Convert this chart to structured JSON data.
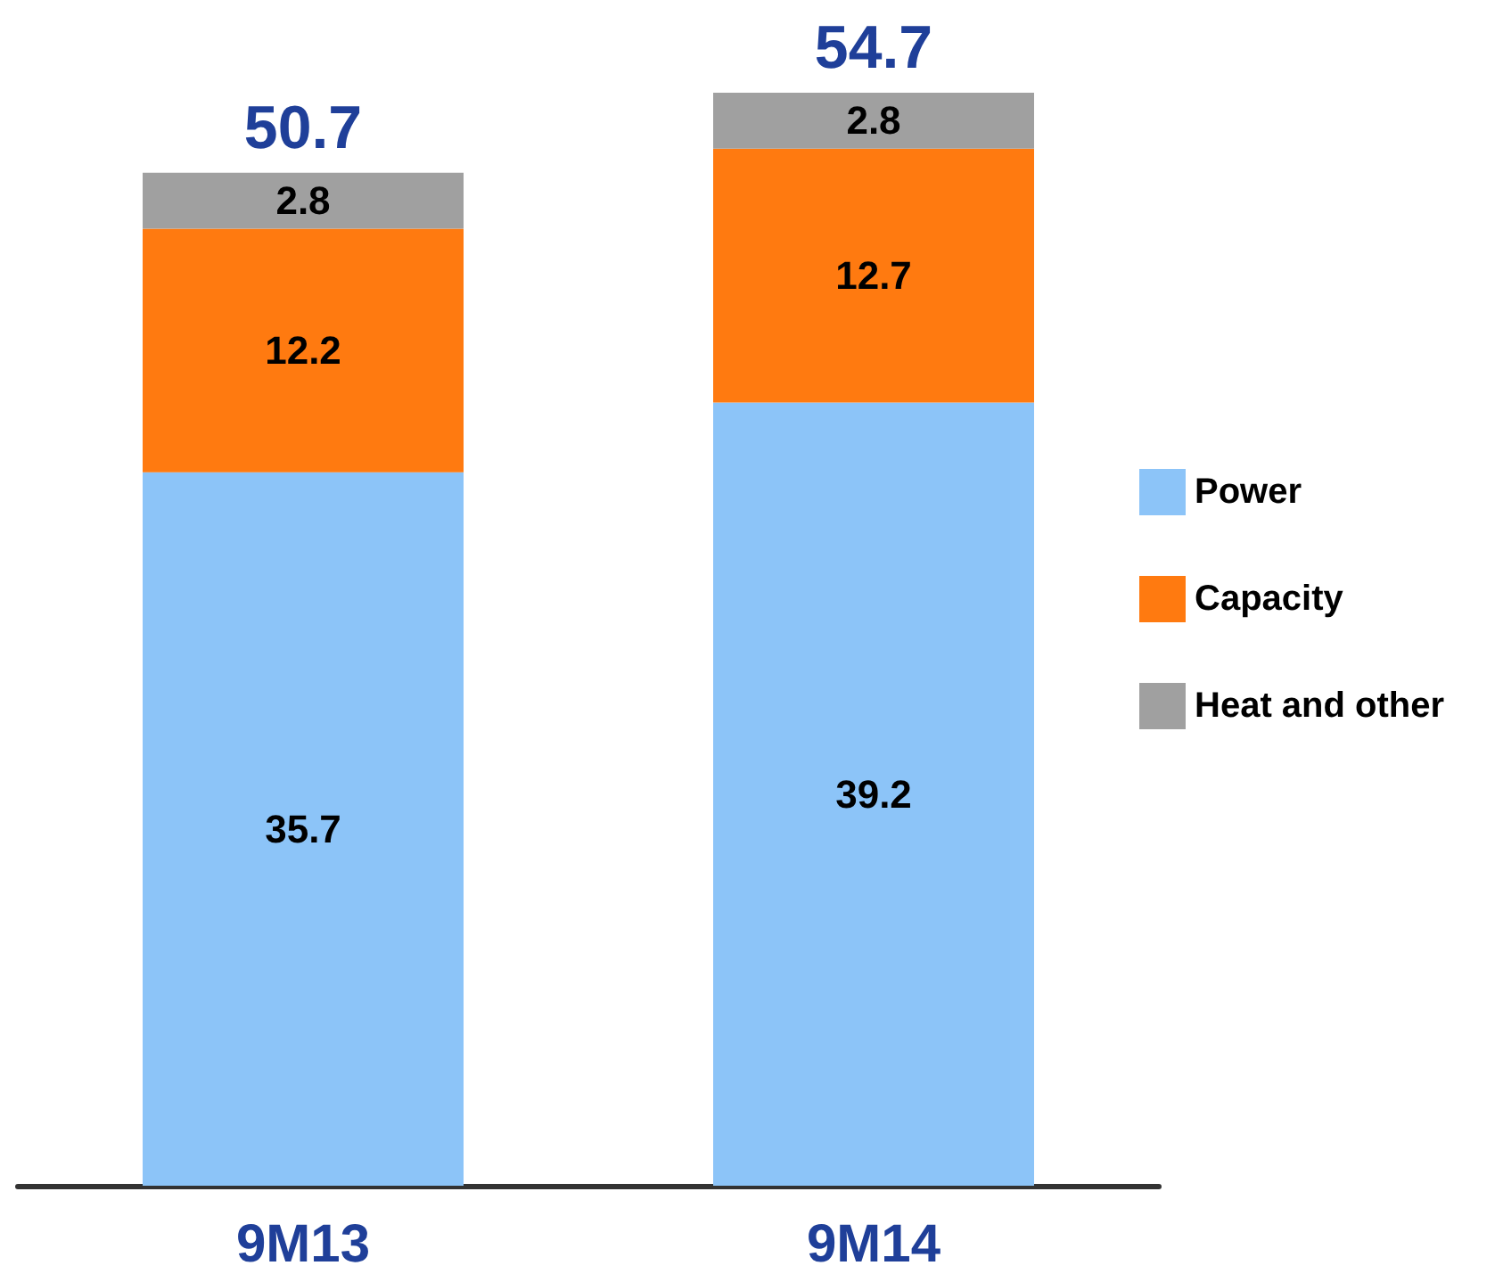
{
  "chart_data": {
    "type": "bar",
    "stacked": true,
    "categories": [
      "9M13",
      "9M14"
    ],
    "series": [
      {
        "name": "Power",
        "color": "#8cc4f8",
        "values": [
          35.7,
          39.2
        ]
      },
      {
        "name": "Capacity",
        "color": "#ff7a10",
        "values": [
          12.2,
          12.7
        ]
      },
      {
        "name": "Heat and other",
        "color": "#a0a0a0",
        "values": [
          2.8,
          2.8
        ]
      }
    ],
    "totals": [
      "50.7",
      "54.7"
    ],
    "data_labels": true,
    "legend": "right",
    "tick_labels": "x"
  }
}
